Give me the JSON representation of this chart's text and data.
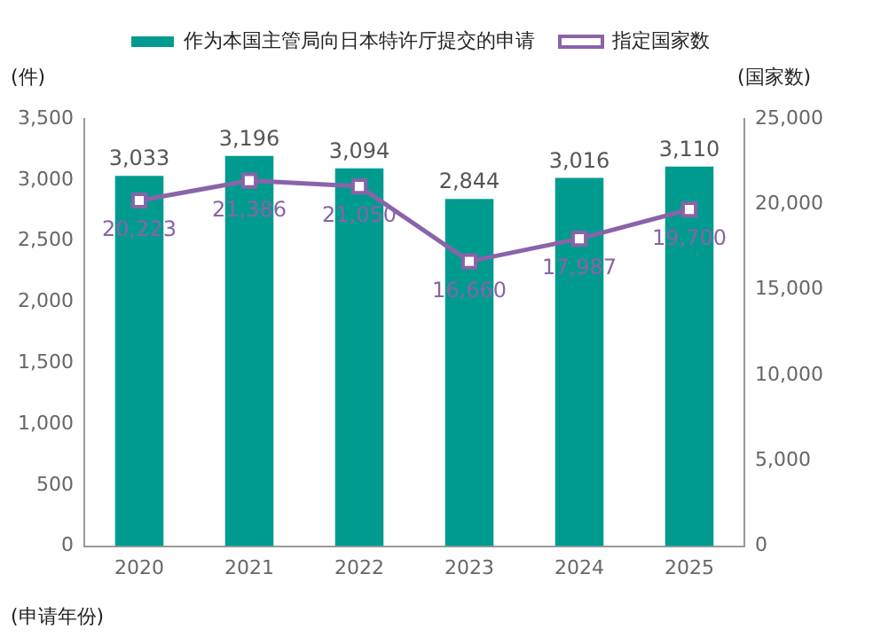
{
  "chart_data": {
    "type": "bar",
    "categories": [
      "2020",
      "2021",
      "2022",
      "2023",
      "2024",
      "2025"
    ],
    "series": [
      {
        "name": "作为本国主管局向日本特许厅提交的申请",
        "color": "#009b8f",
        "values": [
          3033,
          3196,
          3094,
          2844,
          3016,
          3110
        ],
        "value_labels": [
          "3,033",
          "3,196",
          "3,094",
          "2,844",
          "3,016",
          "3,110"
        ]
      },
      {
        "name": "指定国家数",
        "type": "line",
        "axis": "y2",
        "color": "#8a63a8",
        "marker": "square",
        "values": [
          20223,
          21386,
          21050,
          16660,
          17987,
          19700
        ],
        "value_labels": [
          "20,223",
          "21,386",
          "21,050",
          "16,660",
          "17,987",
          "19,700"
        ]
      }
    ],
    "ylabel": "(件)",
    "y2label": "(国家数)",
    "xlabel": "(申请年份)",
    "ylim": [
      0,
      3500
    ],
    "yticks": [
      0,
      {
        "value": 500,
        "label": "500"
      },
      {
        "value": 1000,
        "label": "1,000"
      },
      {
        "value": 1500,
        "label": "1,500"
      },
      {
        "value": 2000,
        "label": "2,000"
      },
      {
        "value": 2500,
        "label": "2,500"
      },
      {
        "value": 3000,
        "label": "3,000"
      },
      {
        "value": 3500,
        "label": "3,500"
      }
    ],
    "y2lim": [
      0,
      25000
    ],
    "y2ticks": [
      0,
      {
        "value": 5000,
        "label": "5,000"
      },
      {
        "value": 10000,
        "label": "10,000"
      },
      {
        "value": 15000,
        "label": "15,000"
      },
      {
        "value": 20000,
        "label": "20,000"
      },
      {
        "value": 25000,
        "label": "25,000"
      }
    ],
    "legend": "top",
    "grid": false
  }
}
